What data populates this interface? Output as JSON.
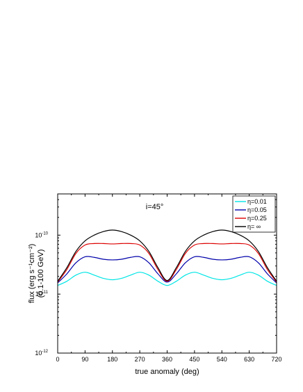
{
  "chart_data": {
    "type": "line",
    "title": "",
    "annotation": "i=45°",
    "xlabel": "true anomaly (deg)",
    "ylabel_line1": "flux (erg s⁻¹cm⁻²)",
    "ylabel_line2": "(0.1-100 GeV)",
    "xlim": [
      0,
      720
    ],
    "ylim": [
      1e-12,
      5e-10
    ],
    "yscale": "log",
    "xticks": [
      0,
      90,
      180,
      270,
      360,
      450,
      540,
      630,
      720
    ],
    "xtick_labels": [
      "0",
      "90",
      "180",
      "270",
      "360",
      "450",
      "540",
      "630",
      "720"
    ],
    "yticks": [
      1e-12,
      1e-11,
      1e-10
    ],
    "ytick_labels": [
      {
        "base": "10",
        "exp": "-12"
      },
      {
        "base": "10",
        "exp": "-11"
      },
      {
        "base": "10",
        "exp": "-10"
      }
    ],
    "legend_position": "top-right",
    "x": [
      0,
      30,
      60,
      90,
      120,
      150,
      180,
      210,
      240,
      270,
      300,
      330,
      360,
      390,
      420,
      450,
      480,
      510,
      540,
      570,
      600,
      630,
      660,
      690,
      720
    ],
    "series": [
      {
        "name": "η=0.01",
        "color": "#00e5e5",
        "values": [
          1.4e-11,
          1.65e-11,
          2.1e-11,
          2.35e-11,
          2.1e-11,
          1.85e-11,
          1.75e-11,
          1.85e-11,
          2.1e-11,
          2.35e-11,
          2.1e-11,
          1.65e-11,
          1.4e-11,
          1.65e-11,
          2.1e-11,
          2.35e-11,
          2.1e-11,
          1.85e-11,
          1.75e-11,
          1.85e-11,
          2.1e-11,
          2.35e-11,
          2.1e-11,
          1.65e-11,
          1.4e-11
        ]
      },
      {
        "name": "η=0.05",
        "color": "#0000aa",
        "values": [
          1.55e-11,
          2.2e-11,
          3.4e-11,
          4.3e-11,
          4.2e-11,
          3.9e-11,
          3.8e-11,
          3.9e-11,
          4.2e-11,
          4.3e-11,
          3.4e-11,
          2.2e-11,
          1.6e-11,
          2.2e-11,
          3.4e-11,
          4.3e-11,
          4.2e-11,
          3.9e-11,
          3.8e-11,
          3.9e-11,
          4.2e-11,
          4.3e-11,
          3.4e-11,
          2.2e-11,
          1.55e-11
        ]
      },
      {
        "name": "η=0.25",
        "color": "#dd0000",
        "values": [
          1.6e-11,
          2.6e-11,
          4.9e-11,
          6.8e-11,
          7.2e-11,
          7.2e-11,
          7.1e-11,
          7.2e-11,
          7.2e-11,
          6.8e-11,
          4.9e-11,
          2.6e-11,
          1.65e-11,
          2.6e-11,
          4.9e-11,
          6.8e-11,
          7.2e-11,
          7.2e-11,
          7.1e-11,
          7.2e-11,
          7.2e-11,
          6.8e-11,
          4.9e-11,
          2.6e-11,
          1.6e-11
        ]
      },
      {
        "name": "η= ∞",
        "color": "#000000",
        "values": [
          1.65e-11,
          2.8e-11,
          5.3e-11,
          8e-11,
          1e-10,
          1.15e-10,
          1.22e-10,
          1.15e-10,
          1e-10,
          8e-11,
          5.3e-11,
          2.8e-11,
          1.7e-11,
          2.8e-11,
          5.3e-11,
          8e-11,
          1e-10,
          1.15e-10,
          1.22e-10,
          1.15e-10,
          1e-10,
          8e-11,
          5.3e-11,
          2.8e-11,
          1.65e-11
        ]
      }
    ]
  }
}
